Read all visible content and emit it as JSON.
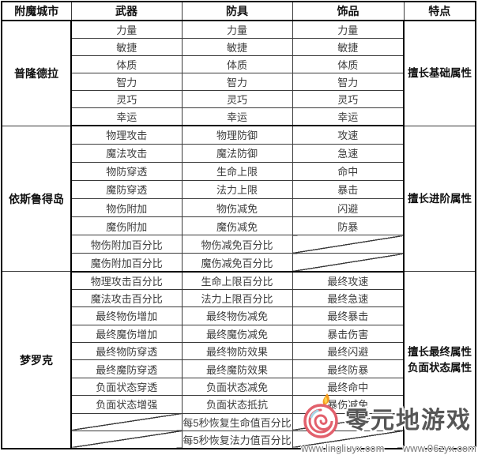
{
  "table": {
    "headers": [
      "附魔城市",
      "武器",
      "防具",
      "饰品",
      "特点"
    ],
    "sections": [
      {
        "city": "普隆德拉",
        "trait": [
          "擅长基础属性"
        ],
        "rows": [
          [
            "力量",
            "力量",
            "力量"
          ],
          [
            "敏捷",
            "敏捷",
            "敏捷"
          ],
          [
            "体质",
            "体质",
            "体质"
          ],
          [
            "智力",
            "智力",
            "智力"
          ],
          [
            "灵巧",
            "灵巧",
            "灵巧"
          ],
          [
            "幸运",
            "幸运",
            "幸运"
          ]
        ]
      },
      {
        "city": "依斯鲁得岛",
        "trait": [
          "擅长进阶属性"
        ],
        "rows": [
          [
            "物理攻击",
            "物理防御",
            "攻速"
          ],
          [
            "魔法攻击",
            "魔法防御",
            "急速"
          ],
          [
            "物防穿透",
            "生命上限",
            "命中"
          ],
          [
            "魔防穿透",
            "法力上限",
            "暴击"
          ],
          [
            "物伤附加",
            "物伤减免",
            "闪避"
          ],
          [
            "魔伤附加",
            "魔伤减免",
            "防暴"
          ],
          [
            "物伤附加百分比",
            "物伤减免百分比",
            null
          ],
          [
            "魔伤附加百分比",
            "魔伤减免百分比",
            null
          ]
        ]
      },
      {
        "city": "梦罗克",
        "trait": [
          "擅长最终属性",
          "负面状态属性"
        ],
        "rows": [
          [
            "物理攻击百分比",
            "生命上限百分比",
            "最终攻速"
          ],
          [
            "魔法攻击百分比",
            "法力上限百分比",
            "最终急速"
          ],
          [
            "最终物伤增加",
            "最终物伤减免",
            "最终暴击"
          ],
          [
            "最终魔伤增加",
            "最终魔伤减免",
            "暴击伤害"
          ],
          [
            "最终物防穿透",
            "最终物防效果",
            "最终闪避"
          ],
          [
            "最终魔防穿透",
            "最终魔防效果",
            "最终防暴"
          ],
          [
            "负面状态穿透",
            "负面状态减免",
            "最终命中"
          ],
          [
            "负面状态增强",
            "负面状态抵抗",
            "暴伤减免"
          ],
          [
            null,
            "每5秒恢复生命值百分比",
            null
          ],
          [
            null,
            "每5秒恢复法力值百分比",
            null
          ]
        ]
      }
    ]
  },
  "watermark": {
    "site_name": "零元地游戏",
    "urls": [
      "www.lingliuyx.com",
      "www.06zyx.com"
    ],
    "colors": {
      "logo_swirl": "#e2606c",
      "logo_flame": "#f59b20",
      "logo_accent": "#a8d6e6",
      "name_text": "#565656",
      "url_text": "#7d7d7d"
    }
  },
  "style_colors": {
    "border_outer": "#000000",
    "border_inner": "#3a3a3a",
    "cell_text": "#3d3d3d",
    "header_text": "#111111",
    "background": "#ffffff"
  }
}
